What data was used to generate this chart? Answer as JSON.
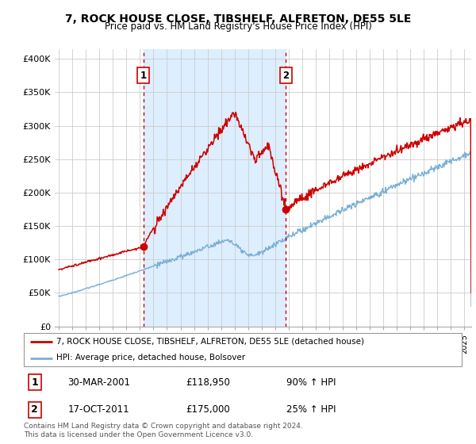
{
  "title": "7, ROCK HOUSE CLOSE, TIBSHELF, ALFRETON, DE55 5LE",
  "subtitle": "Price paid vs. HM Land Registry's House Price Index (HPI)",
  "ylabel_ticks": [
    "£0",
    "£50K",
    "£100K",
    "£150K",
    "£200K",
    "£250K",
    "£300K",
    "£350K",
    "£400K"
  ],
  "ytick_vals": [
    0,
    50000,
    100000,
    150000,
    200000,
    250000,
    300000,
    350000,
    400000
  ],
  "ylim": [
    0,
    415000
  ],
  "xlim_start": 1994.7,
  "xlim_end": 2025.5,
  "sale1": {
    "date_num": 2001.25,
    "price": 118950,
    "label": "1"
  },
  "sale2": {
    "date_num": 2011.8,
    "price": 175000,
    "label": "2"
  },
  "legend_entries": [
    "7, ROCK HOUSE CLOSE, TIBSHELF, ALFRETON, DE55 5LE (detached house)",
    "HPI: Average price, detached house, Bolsover"
  ],
  "table_rows": [
    {
      "num": "1",
      "date": "30-MAR-2001",
      "price": "£118,950",
      "change": "90% ↑ HPI"
    },
    {
      "num": "2",
      "date": "17-OCT-2011",
      "price": "£175,000",
      "change": "25% ↑ HPI"
    }
  ],
  "footer": "Contains HM Land Registry data © Crown copyright and database right 2024.\nThis data is licensed under the Open Government Licence v3.0.",
  "line_color_red": "#cc0000",
  "line_color_blue": "#7aafd4",
  "shade_color": "#ddeeff",
  "vline_color": "#cc0000",
  "background_color": "#ffffff",
  "grid_color": "#cccccc"
}
